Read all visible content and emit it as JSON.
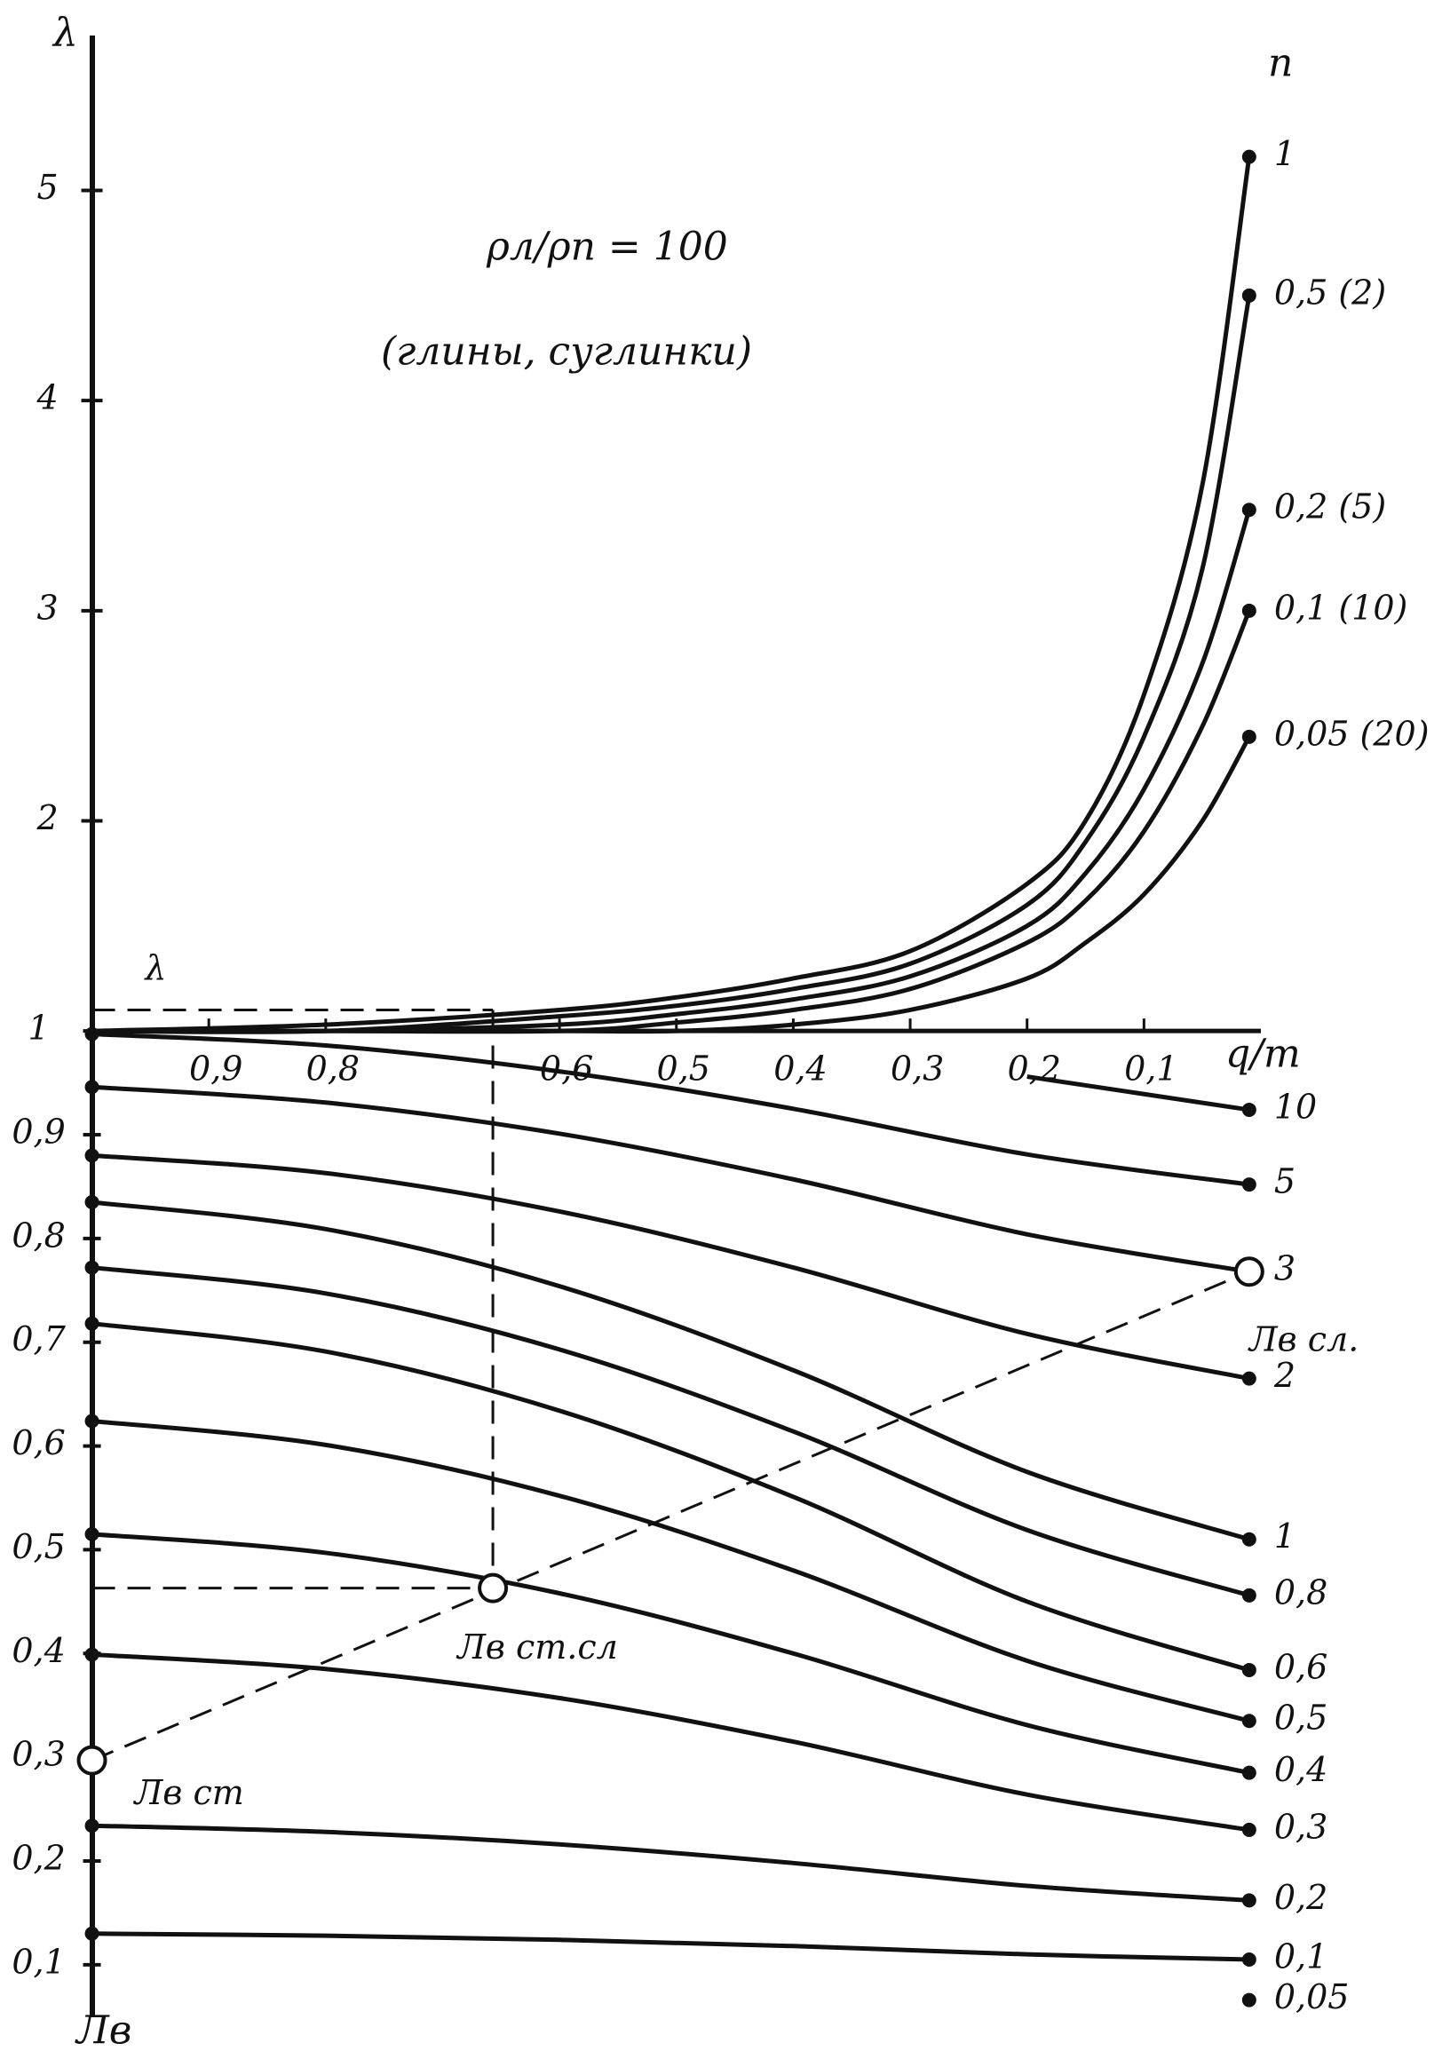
{
  "chart_data": [
    {
      "type": "line",
      "y_label": "λ",
      "x_label": "q/m",
      "legend_title": "n",
      "annotations": [
        "ρл/ρп = 100",
        "(глины, суглинки)"
      ],
      "xlim": [
        1,
        0
      ],
      "ylim": [
        1,
        5.6
      ],
      "yticks": [
        2,
        3,
        4,
        5
      ],
      "xticks": [
        {
          "value": 0.9,
          "label": "0,9"
        },
        {
          "value": 0.8,
          "label": "0,8"
        },
        {
          "value": 0.6,
          "label": "0,6"
        },
        {
          "value": 0.5,
          "label": "0,5"
        },
        {
          "value": 0.4,
          "label": "0,4"
        },
        {
          "value": 0.3,
          "label": "0,3"
        },
        {
          "value": 0.2,
          "label": "0,2"
        },
        {
          "value": 0.1,
          "label": "0,1"
        }
      ],
      "color": "#111111",
      "x": [
        1,
        0.8,
        0.6,
        0.5,
        0.4,
        0.3,
        0.2,
        0.15,
        0.1,
        0.05,
        0.01
      ],
      "series": [
        {
          "name": "1",
          "values": [
            1.0,
            1.03,
            1.1,
            1.16,
            1.25,
            1.38,
            1.7,
            2.0,
            2.6,
            3.6,
            5.16
          ]
        },
        {
          "name": "0,5 (2)",
          "values": [
            1.0,
            1.0,
            1.07,
            1.12,
            1.2,
            1.32,
            1.6,
            1.9,
            2.4,
            3.2,
            4.5
          ]
        },
        {
          "name": "0,2 (5)",
          "values": [
            1.0,
            1.0,
            1.03,
            1.08,
            1.15,
            1.26,
            1.5,
            1.75,
            2.15,
            2.75,
            3.48
          ]
        },
        {
          "name": "0,1 (10)",
          "values": [
            1.0,
            1.0,
            1.0,
            1.04,
            1.1,
            1.2,
            1.42,
            1.62,
            1.95,
            2.45,
            3.0
          ]
        },
        {
          "name": "0,05 (20)",
          "values": [
            1.0,
            1.0,
            1.0,
            1.0,
            1.03,
            1.1,
            1.25,
            1.42,
            1.65,
            2.0,
            2.4
          ]
        }
      ],
      "construction": {
        "label": "λ",
        "value": 1.1,
        "x": 0.657
      }
    },
    {
      "type": "line",
      "y_label": "Лв",
      "xlim": [
        1,
        0
      ],
      "ylim": [
        0.05,
        1
      ],
      "yticks": [
        1,
        {
          "value": 0.9,
          "label": "0,9"
        },
        {
          "value": 0.8,
          "label": "0,8"
        },
        {
          "value": 0.7,
          "label": "0,7"
        },
        {
          "value": 0.6,
          "label": "0,6"
        },
        {
          "value": 0.5,
          "label": "0,5"
        },
        {
          "value": 0.4,
          "label": "0,4"
        },
        {
          "value": 0.3,
          "label": "0,3"
        },
        {
          "value": 0.2,
          "label": "0,2"
        },
        {
          "value": 0.1,
          "label": "0,1"
        }
      ],
      "color": "#111111",
      "x": [
        1,
        0.8,
        0.6,
        0.4,
        0.2,
        0.01
      ],
      "series": [
        {
          "name": "10",
          "values": [
            null,
            null,
            null,
            null,
            0.956,
            0.924
          ]
        },
        {
          "name": "5",
          "values": [
            0.997,
            0.986,
            0.961,
            0.925,
            0.881,
            0.852
          ]
        },
        {
          "name": "3",
          "values": [
            0.946,
            0.931,
            0.901,
            0.857,
            0.804,
            0.768
          ]
        },
        {
          "name": "2",
          "values": [
            0.88,
            0.863,
            0.826,
            0.772,
            0.708,
            0.665
          ]
        },
        {
          "name": "1",
          "values": [
            0.835,
            0.809,
            0.754,
            0.673,
            0.575,
            0.51
          ]
        },
        {
          "name": "0,8",
          "values": [
            0.772,
            0.747,
            0.693,
            0.614,
            0.519,
            0.456
          ]
        },
        {
          "name": "0,6",
          "values": [
            0.718,
            0.691,
            0.634,
            0.551,
            0.45,
            0.384
          ]
        },
        {
          "name": "0,5",
          "values": [
            0.624,
            0.601,
            0.552,
            0.48,
            0.393,
            0.335
          ]
        },
        {
          "name": "0,4",
          "values": [
            0.515,
            0.497,
            0.458,
            0.4,
            0.331,
            0.285
          ]
        },
        {
          "name": "0,3",
          "values": [
            0.399,
            0.385,
            0.357,
            0.315,
            0.264,
            0.23
          ]
        },
        {
          "name": "0,2",
          "values": [
            0.234,
            0.228,
            0.216,
            0.198,
            0.176,
            0.162
          ]
        },
        {
          "name": "0,1",
          "values": [
            0.13,
            0.128,
            0.124,
            0.118,
            0.11,
            0.105
          ]
        },
        {
          "name": "0,05",
          "values": [
            null,
            null,
            null,
            null,
            null,
            0.066
          ]
        }
      ],
      "points": [
        {
          "label": "Лв ст",
          "x": 1,
          "value": 0.297
        },
        {
          "label": "Лв ст.сл",
          "x": 0.657,
          "value": 0.463
        },
        {
          "label": "Лв сл.",
          "x": 0.01,
          "value": 0.768
        }
      ]
    }
  ]
}
